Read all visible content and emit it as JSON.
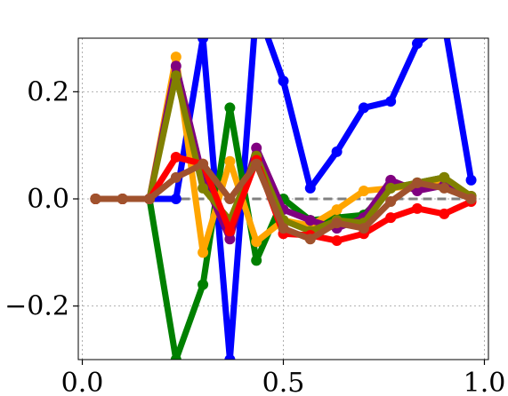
{
  "chart_data": {
    "type": "line",
    "title": "",
    "xlabel": "",
    "ylabel": "",
    "xlim": [
      -0.01,
      1.01
    ],
    "ylim": [
      -0.3,
      0.3
    ],
    "xticks": [
      0.0,
      0.5,
      1.0
    ],
    "xtick_labels": [
      "0.0",
      "0.5",
      "1.0"
    ],
    "yticks": [
      -0.2,
      0.0,
      0.2
    ],
    "ytick_labels": [
      "−0.2",
      "0.0",
      "0.2"
    ],
    "grid": true,
    "legend": "none",
    "x": [
      0.033,
      0.1,
      0.167,
      0.233,
      0.3,
      0.367,
      0.433,
      0.5,
      0.567,
      0.633,
      0.7,
      0.767,
      0.833,
      0.9,
      0.967
    ],
    "reference_line": {
      "y": 0.0,
      "color": "#808080",
      "style": "dashed"
    },
    "series": [
      {
        "color": "#0000ff",
        "values": [
          0.0,
          0.0,
          0.0,
          0.0,
          0.3,
          -0.3,
          0.36,
          0.22,
          0.02,
          0.088,
          0.17,
          0.182,
          0.29,
          0.33,
          0.035
        ]
      },
      {
        "color": "#008000",
        "values": [
          0.0,
          0.0,
          0.0,
          -0.3,
          -0.16,
          0.17,
          -0.115,
          0.0,
          -0.04,
          -0.035,
          -0.03,
          0.02,
          0.03,
          0.04,
          0.0
        ]
      },
      {
        "color": "#ffa500",
        "values": [
          0.0,
          0.0,
          0.0,
          0.265,
          -0.1,
          0.07,
          -0.08,
          -0.04,
          -0.05,
          -0.02,
          0.015,
          0.02,
          0.025,
          0.03,
          0.005
        ]
      },
      {
        "color": "#800080",
        "values": [
          0.0,
          0.0,
          0.0,
          0.248,
          0.04,
          -0.075,
          0.095,
          -0.02,
          -0.04,
          -0.055,
          -0.035,
          0.035,
          0.015,
          0.025,
          0.005
        ]
      },
      {
        "color": "#808000",
        "values": [
          0.0,
          0.0,
          0.0,
          0.23,
          0.02,
          -0.04,
          0.08,
          -0.04,
          -0.06,
          -0.04,
          -0.045,
          0.02,
          0.03,
          0.04,
          0.005
        ]
      },
      {
        "color": "#ff0000",
        "values": [
          0.0,
          0.0,
          0.0,
          0.078,
          0.065,
          -0.06,
          0.072,
          -0.065,
          -0.068,
          -0.078,
          -0.065,
          -0.035,
          -0.018,
          -0.028,
          -0.005
        ]
      },
      {
        "color": "#a0522d",
        "values": [
          0.0,
          0.0,
          0.0,
          0.04,
          0.065,
          0.0,
          0.065,
          -0.055,
          -0.075,
          -0.045,
          -0.055,
          -0.005,
          0.03,
          0.02,
          0.0
        ]
      }
    ]
  }
}
